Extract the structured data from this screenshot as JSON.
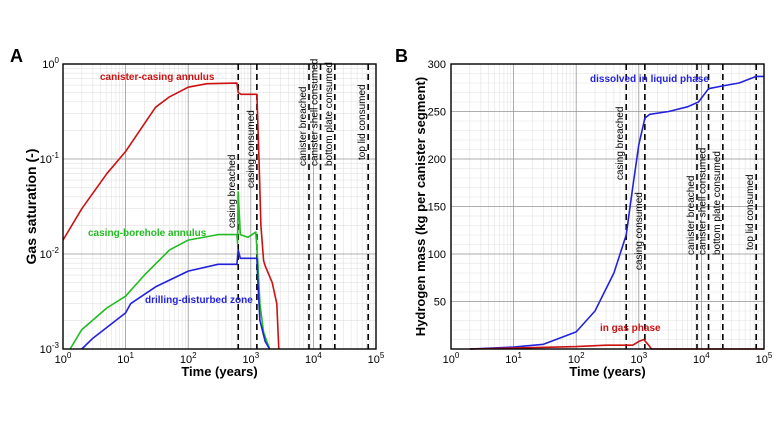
{
  "chart_data": [
    {
      "panel_label": "A",
      "type": "line",
      "xlabel": "Time (years)",
      "ylabel": "Gas saturation (-)",
      "xscale": "log",
      "yscale": "log",
      "xlim": [
        1,
        100000
      ],
      "ylim": [
        0.001,
        1
      ],
      "grid": true,
      "x_tick_labels": [
        "10^0",
        "10^1",
        "10^2",
        "10^3",
        "10^4",
        "10^5"
      ],
      "y_tick_labels": [
        "10^-3",
        "10^-2",
        "10^-1",
        "10^0"
      ],
      "events": [
        {
          "label": "casing breached",
          "x": 630
        },
        {
          "label": "casing consumed",
          "x": 1250
        },
        {
          "label": "canister breached",
          "x": 8500
        },
        {
          "label": "canister shell consumed",
          "x": 13000
        },
        {
          "label": "bottom plate consumed",
          "x": 22000
        },
        {
          "label": "top lid consumed",
          "x": 75000
        }
      ],
      "series": [
        {
          "name": "canister-casing annulus",
          "color": "#cc1111",
          "x": [
            1,
            2,
            5,
            10,
            30,
            50,
            100,
            200,
            600,
            630,
            700,
            1000,
            1250,
            1350,
            1450,
            1600,
            1700,
            2200,
            2600,
            2800
          ],
          "y": [
            0.014,
            0.03,
            0.07,
            0.12,
            0.35,
            0.45,
            0.57,
            0.62,
            0.63,
            0.5,
            0.48,
            0.48,
            0.48,
            0.1,
            0.02,
            0.0085,
            0.0075,
            0.005,
            0.003,
            0.001
          ]
        },
        {
          "name": "casing-borehole annulus",
          "color": "#22bb22",
          "x": [
            1.3,
            2,
            5,
            10,
            20,
            50,
            100,
            300,
            600,
            615,
            630,
            680,
            900,
            1200,
            1300,
            1400,
            1600,
            2000
          ],
          "y": [
            0.001,
            0.0016,
            0.0027,
            0.0036,
            0.006,
            0.011,
            0.014,
            0.016,
            0.016,
            0.013,
            0.045,
            0.016,
            0.015,
            0.017,
            0.008,
            0.003,
            0.0015,
            0.001
          ]
        },
        {
          "name": "drilling-disturbed zone",
          "color": "#2222dd",
          "x": [
            2,
            3,
            10,
            12,
            30,
            100,
            300,
            600,
            630,
            680,
            1250,
            1300,
            1400,
            1700,
            2000
          ],
          "y": [
            0.001,
            0.0013,
            0.0024,
            0.003,
            0.0045,
            0.0066,
            0.0078,
            0.0078,
            0.011,
            0.009,
            0.009,
            0.005,
            0.002,
            0.0012,
            0.001
          ]
        }
      ]
    },
    {
      "panel_label": "B",
      "type": "line",
      "xlabel": "Time (years)",
      "ylabel": "Hydrogen mass (kg per canister segment)",
      "xscale": "log",
      "yscale": "linear",
      "xlim": [
        1,
        100000
      ],
      "ylim": [
        0,
        300
      ],
      "grid": true,
      "x_tick_labels": [
        "10^0",
        "10^1",
        "10^2",
        "10^3",
        "10^4",
        "10^5"
      ],
      "y_ticks": [
        50,
        100,
        150,
        200,
        250,
        300
      ],
      "events": [
        {
          "label": "casing breached",
          "x": 630
        },
        {
          "label": "casing consumed",
          "x": 1250
        },
        {
          "label": "canister breached",
          "x": 8500
        },
        {
          "label": "canister shell consumed",
          "x": 13000
        },
        {
          "label": "bottom plate consumed",
          "x": 22000
        },
        {
          "label": "top lid consumed",
          "x": 75000
        }
      ],
      "series": [
        {
          "name": "dissolved in liquid phase",
          "color": "#2222dd",
          "x": [
            2,
            10,
            30,
            100,
            200,
            400,
            630,
            800,
            1000,
            1250,
            1500,
            3000,
            6000,
            9000,
            13000,
            22000,
            40000,
            75000,
            100000
          ],
          "y": [
            0,
            2,
            5,
            18,
            40,
            80,
            120,
            170,
            215,
            243,
            247,
            250,
            255,
            260,
            274,
            277,
            280,
            287,
            287
          ]
        },
        {
          "name": "in gas phase",
          "color": "#cc1111",
          "x": [
            2,
            10,
            100,
            300,
            800,
            1000,
            1200,
            1400,
            1600,
            100000
          ],
          "y": [
            0,
            1,
            2.5,
            4,
            4,
            8,
            10,
            5,
            0,
            0
          ]
        }
      ]
    }
  ]
}
